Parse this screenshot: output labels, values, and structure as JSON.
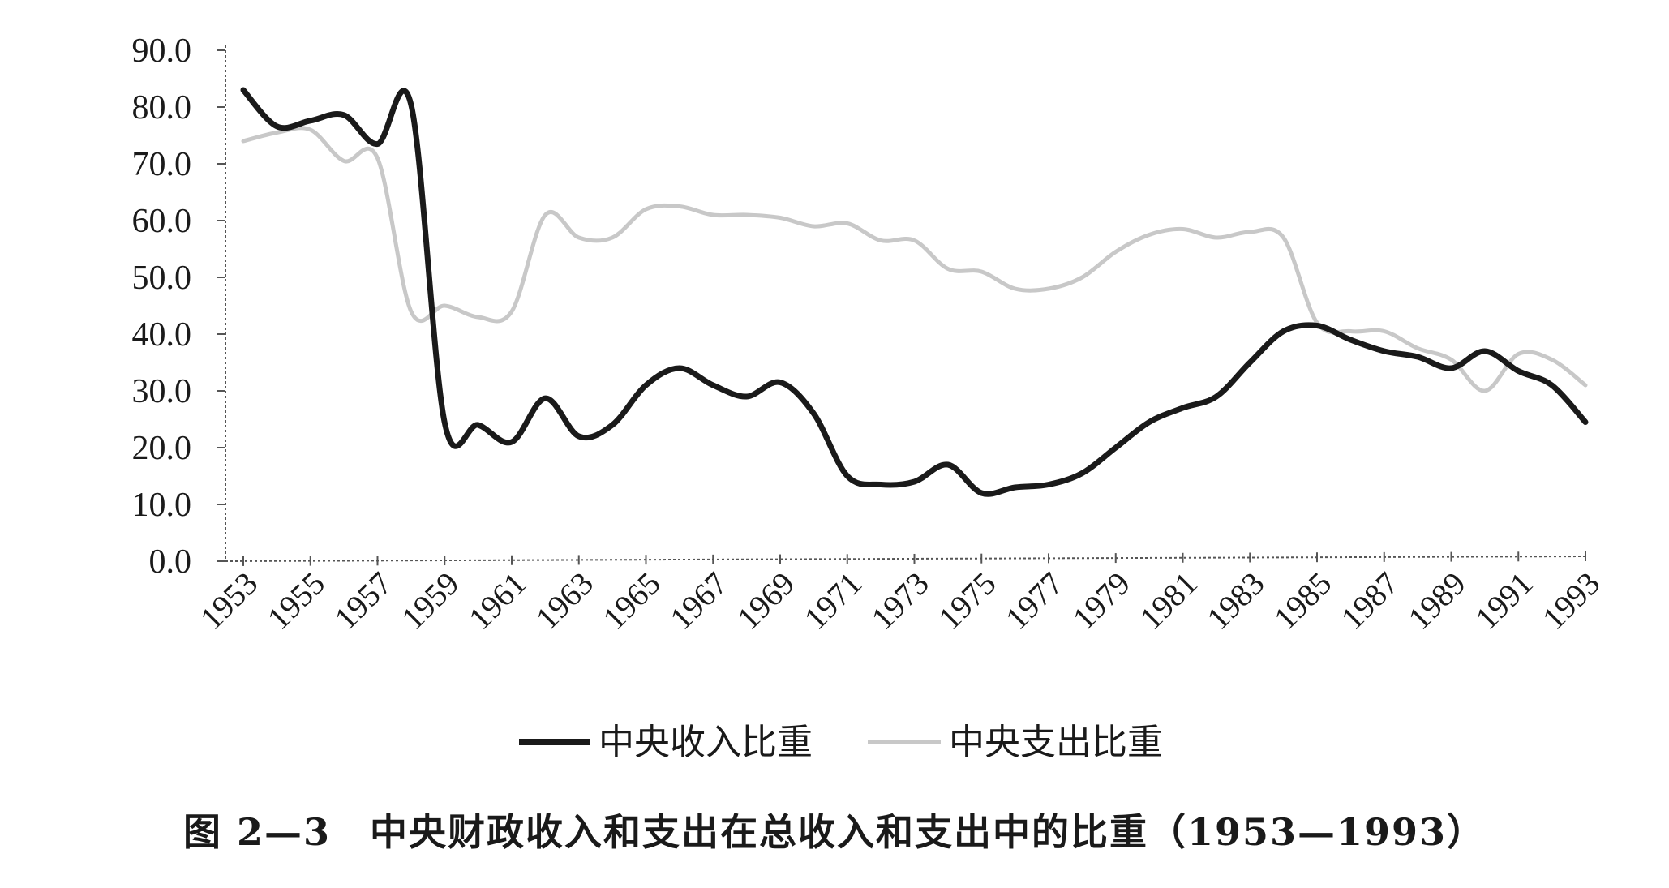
{
  "chart_data": {
    "type": "line",
    "x": [
      1953,
      1954,
      1955,
      1956,
      1957,
      1958,
      1959,
      1960,
      1961,
      1962,
      1963,
      1964,
      1965,
      1966,
      1967,
      1968,
      1969,
      1970,
      1971,
      1972,
      1973,
      1974,
      1975,
      1976,
      1977,
      1978,
      1979,
      1980,
      1981,
      1982,
      1983,
      1984,
      1985,
      1986,
      1987,
      1988,
      1989,
      1990,
      1991,
      1992,
      1993
    ],
    "x_tick_labels": [
      "1953",
      "1955",
      "1957",
      "1959",
      "1961",
      "1963",
      "1965",
      "1967",
      "1969",
      "1971",
      "1973",
      "1975",
      "1977",
      "1979",
      "1981",
      "1983",
      "1985",
      "1987",
      "1989",
      "1991",
      "1993"
    ],
    "y_tick_labels": [
      "0.0",
      "10.0",
      "20.0",
      "30.0",
      "40.0",
      "50.0",
      "60.0",
      "70.0",
      "80.0",
      "90.0"
    ],
    "ylim": [
      0,
      90
    ],
    "series": [
      {
        "name": "中央收入比重",
        "color": "#1a1a1a",
        "values": [
          83.0,
          76.6,
          77.6,
          78.6,
          73.5,
          80.4,
          24.4,
          24.0,
          21.0,
          28.7,
          22.0,
          24.0,
          31.0,
          34.0,
          31.0,
          29.0,
          31.5,
          26.0,
          15.0,
          13.5,
          14.0,
          17.0,
          12.0,
          13.0,
          13.5,
          15.5,
          20.0,
          24.5,
          27.0,
          29.0,
          35.0,
          40.5,
          41.5,
          39.0,
          37.0,
          36.0,
          34.0,
          37.0,
          33.5,
          31.0,
          24.5
        ]
      },
      {
        "name": "中央支出比重",
        "color": "#c8c8c8",
        "values": [
          74.0,
          75.5,
          76.0,
          70.5,
          71.0,
          44.0,
          45.0,
          43.0,
          44.0,
          61.0,
          57.0,
          57.0,
          62.0,
          62.5,
          61.0,
          61.0,
          60.5,
          59.0,
          59.5,
          56.5,
          56.5,
          51.5,
          51.0,
          48.0,
          48.0,
          50.0,
          54.5,
          57.5,
          58.5,
          57.0,
          58.0,
          57.0,
          42.0,
          40.5,
          40.5,
          37.5,
          35.5,
          30.0,
          36.5,
          35.5,
          31.0
        ]
      }
    ],
    "grid": false,
    "legend_position": "bottom-center"
  },
  "caption": "图 2—3　中央财政收入和支出在总收入和支出中的比重（1953—1993）"
}
